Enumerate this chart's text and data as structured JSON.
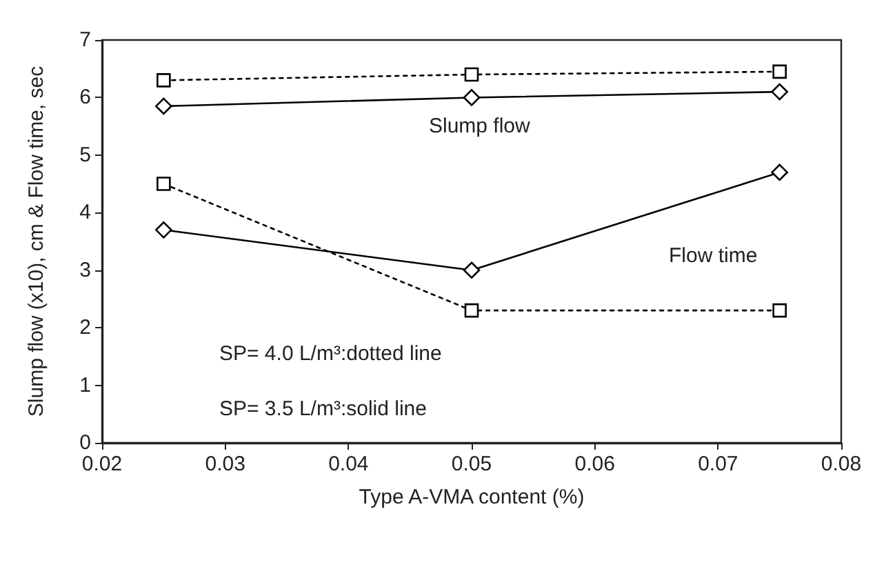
{
  "chart_data": {
    "type": "line",
    "xlabel": "Type A-VMA content (%)",
    "ylabel": "Slump flow (x10), cm & Flow time, sec",
    "x": [
      0.025,
      0.05,
      0.075
    ],
    "series": [
      {
        "color": "#000000",
        "values": [
          6.3,
          6.4,
          6.45
        ],
        "marker": "square",
        "line_style": "dotted"
      },
      {
        "color": "#000000",
        "values": [
          5.85,
          6.0,
          6.1
        ],
        "marker": "diamond",
        "line_style": "solid"
      },
      {
        "color": "#000000",
        "values": [
          4.5,
          2.3,
          2.3
        ],
        "marker": "square",
        "line_style": "dotted"
      },
      {
        "color": "#000000",
        "values": [
          3.7,
          3.0,
          4.7
        ],
        "marker": "diamond",
        "line_style": "solid"
      }
    ],
    "xlim": [
      0.02,
      0.08
    ],
    "xticks": [
      0.02,
      0.03,
      0.04,
      0.05,
      0.06,
      0.07,
      0.08
    ],
    "ylim": [
      0,
      7
    ],
    "yticks": [
      0,
      1,
      2,
      3,
      4,
      5,
      6,
      7
    ],
    "grid": false,
    "annotations": [
      "Slump flow",
      "Flow time",
      "SP= 4.0 L/m³:dotted line",
      "SP= 3.5 L/m³:solid line"
    ]
  }
}
